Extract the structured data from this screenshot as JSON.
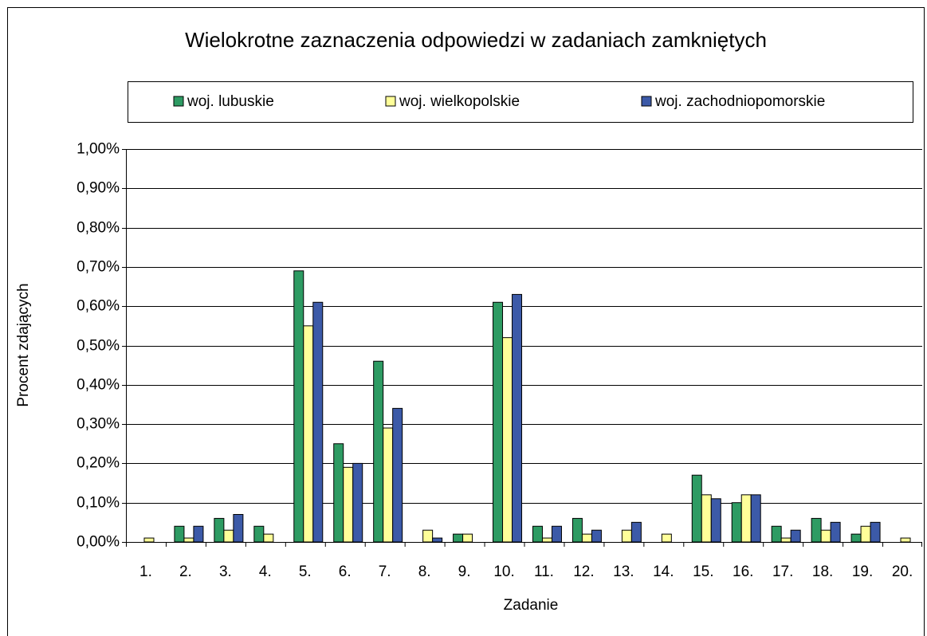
{
  "chart_data": {
    "type": "bar",
    "title": "Wielokrotne zaznaczenia odpowiedzi w zadaniach zamkniętych",
    "x_label": "Zadanie",
    "y_label": "Procent zdających",
    "categories": [
      "1.",
      "2.",
      "3.",
      "4.",
      "5.",
      "6.",
      "7.",
      "8.",
      "9.",
      "10.",
      "11.",
      "12.",
      "13.",
      "14.",
      "15.",
      "16.",
      "17.",
      "18.",
      "19.",
      "20."
    ],
    "series": [
      {
        "name": "woj. lubuskie",
        "color": "#2e9b63",
        "values": [
          0,
          0.04,
          0.06,
          0.04,
          0.69,
          0.25,
          0.46,
          0,
          0.02,
          0.61,
          0.04,
          0.06,
          0,
          0,
          0.17,
          0.1,
          0.04,
          0.06,
          0.02,
          0
        ]
      },
      {
        "name": "woj. wielkopolskie",
        "color": "#ffff99",
        "values": [
          0.01,
          0.01,
          0.03,
          0.02,
          0.55,
          0.19,
          0.29,
          0.03,
          0.02,
          0.52,
          0.01,
          0.02,
          0.03,
          0.02,
          0.12,
          0.12,
          0.01,
          0.03,
          0.04,
          0.01
        ]
      },
      {
        "name": "woj. zachodniopomorskie",
        "color": "#3c5aa8",
        "values": [
          0,
          0.04,
          0.07,
          0,
          0.61,
          0.2,
          0.34,
          0.01,
          0,
          0.63,
          0.04,
          0.03,
          0.05,
          0,
          0.11,
          0.12,
          0.03,
          0.05,
          0.05,
          0
        ]
      }
    ],
    "ylim": [
      0,
      1
    ],
    "yticks": [
      {
        "value": 0,
        "label": "0,00%"
      },
      {
        "value": 0.1,
        "label": "0,10%"
      },
      {
        "value": 0.2,
        "label": "0,20%"
      },
      {
        "value": 0.3,
        "label": "0,30%"
      },
      {
        "value": 0.4,
        "label": "0,40%"
      },
      {
        "value": 0.5,
        "label": "0,50%"
      },
      {
        "value": 0.6,
        "label": "0,60%"
      },
      {
        "value": 0.7,
        "label": "0,70%"
      },
      {
        "value": 0.8,
        "label": "0,80%"
      },
      {
        "value": 0.9,
        "label": "0,90%"
      },
      {
        "value": 1,
        "label": "1,00%"
      }
    ],
    "grid": true,
    "legend": "top"
  }
}
